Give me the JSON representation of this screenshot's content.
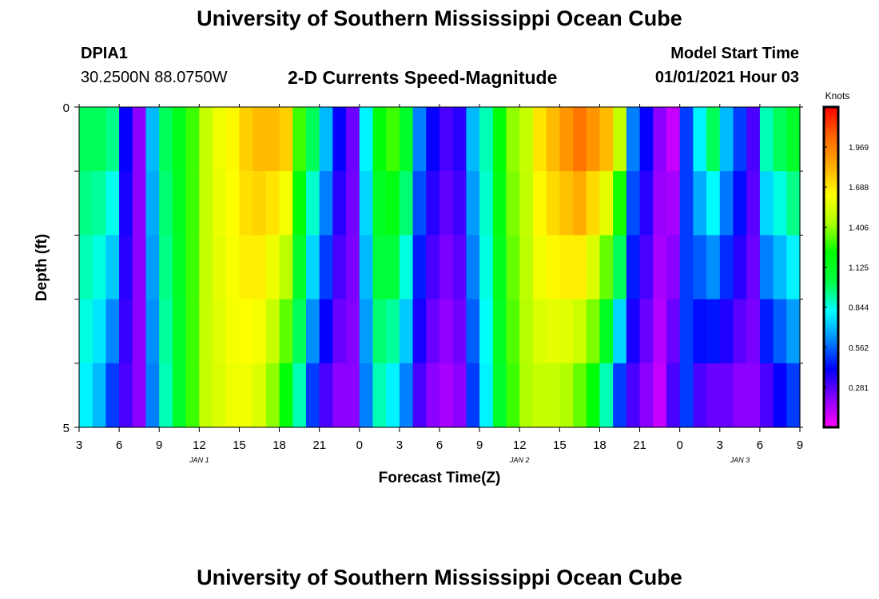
{
  "header": {
    "title": "University of Southern Mississippi Ocean Cube",
    "station_id": "DPIA1",
    "station_coords": "30.2500N 88.0750W",
    "model_start_label": "Model Start Time",
    "model_start_value": "01/01/2021 Hour 03"
  },
  "footer": {
    "title": "University of Southern Mississippi Ocean Cube"
  },
  "chart_data": {
    "type": "heatmap",
    "title": "2-D Currents Speed-Magnitude",
    "xlabel": "Forecast Time(Z)",
    "ylabel": "Depth (ft)",
    "x_ticks": [
      "3",
      "6",
      "9",
      "12",
      "15",
      "18",
      "21",
      "0",
      "3",
      "6",
      "9",
      "12",
      "15",
      "18",
      "21",
      "0",
      "3",
      "6",
      "9"
    ],
    "date_labels": [
      {
        "tick_index": 3,
        "label": "JAN 1"
      },
      {
        "tick_index": 11,
        "label": "JAN 2"
      },
      {
        "tick_index": 16.5,
        "label": "JAN 3"
      }
    ],
    "y_ticks": [
      "0",
      "5"
    ],
    "ylim": [
      0,
      5
    ],
    "x_range_hours": [
      0,
      54
    ],
    "colorbar": {
      "label": "Knots",
      "range": [
        0,
        2.25
      ],
      "ticks": [
        "0.281",
        "0.562",
        "0.844",
        "1.125",
        "1.406",
        "1.688",
        "1.969"
      ],
      "tick_values": [
        0.281,
        0.562,
        0.844,
        1.125,
        1.406,
        1.688,
        1.969
      ],
      "stops": [
        "#ff00ff",
        "#8800ff",
        "#0000ff",
        "#0088ff",
        "#00ffff",
        "#00ff44",
        "#00ff00",
        "#aaff00",
        "#ffff00",
        "#ffaa00",
        "#ff6600",
        "#ff0000"
      ]
    },
    "depth_rows": 5,
    "time_columns": 54,
    "speed_profiles_knots": {
      "note": "approximate surface speed and bottom speed per forecast hour",
      "surface": [
        1.0,
        1.0,
        0.95,
        0.4,
        0.2,
        0.7,
        1.0,
        1.15,
        1.3,
        1.5,
        1.6,
        1.65,
        1.75,
        1.8,
        1.8,
        1.75,
        1.3,
        1.0,
        0.7,
        0.4,
        0.25,
        0.8,
        1.2,
        1.3,
        1.1,
        0.6,
        0.4,
        0.3,
        0.35,
        0.7,
        0.9,
        1.2,
        1.4,
        1.5,
        1.7,
        1.8,
        1.9,
        2.0,
        1.9,
        1.8,
        1.5,
        0.6,
        0.4,
        0.2,
        0.1,
        0.5,
        0.8,
        1.0,
        0.7,
        0.5,
        0.3,
        0.9,
        1.0,
        1.1
      ],
      "bottom": [
        0.8,
        0.7,
        0.5,
        0.3,
        0.2,
        0.6,
        0.9,
        1.1,
        1.3,
        1.5,
        1.55,
        1.6,
        1.6,
        1.55,
        1.4,
        1.2,
        0.9,
        0.5,
        0.3,
        0.2,
        0.2,
        0.6,
        0.9,
        0.8,
        0.6,
        0.3,
        0.2,
        0.15,
        0.2,
        0.5,
        0.8,
        1.1,
        1.3,
        1.45,
        1.5,
        1.5,
        1.45,
        1.35,
        1.2,
        0.9,
        0.5,
        0.3,
        0.2,
        0.1,
        0.3,
        0.5,
        0.3,
        0.25,
        0.25,
        0.2,
        0.2,
        0.3,
        0.4,
        0.5
      ]
    }
  }
}
